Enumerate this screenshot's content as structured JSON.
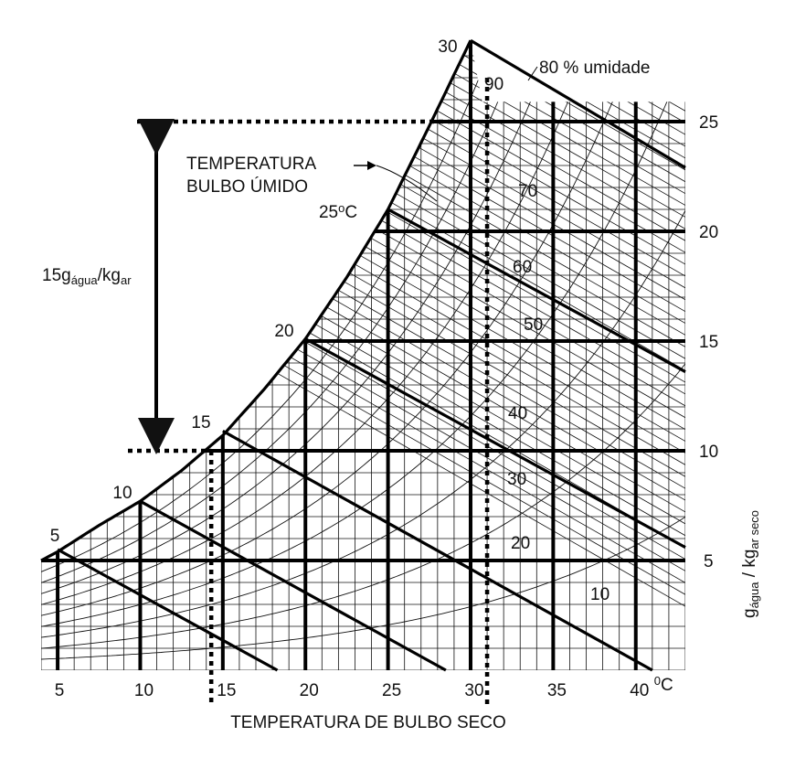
{
  "chart_data": {
    "type": "psychrometric",
    "title": "",
    "xlabel": "TEMPERATURA DE BULBO SECO",
    "ylabel": {
      "main": "g",
      "sub1": "água",
      "mid": " / kg",
      "sub2": "ar seco"
    },
    "x_ticks": [
      "5",
      "10",
      "15",
      "20",
      "25",
      "30",
      "35",
      "40"
    ],
    "x_unit": "0C",
    "x_range": [
      4,
      43
    ],
    "y_ticks": [
      "5",
      "10",
      "15",
      "20",
      "25"
    ],
    "y_range": [
      0,
      29
    ],
    "saturation_curve": [
      {
        "t": 4.0,
        "w": 5.0
      },
      {
        "t": 5.0,
        "w": 5.4
      },
      {
        "t": 7.5,
        "w": 6.6
      },
      {
        "t": 10.0,
        "w": 7.7
      },
      {
        "t": 12.5,
        "w": 9.1
      },
      {
        "t": 15.0,
        "w": 10.7
      },
      {
        "t": 17.5,
        "w": 12.8
      },
      {
        "t": 20.0,
        "w": 15.1
      },
      {
        "t": 22.5,
        "w": 17.9
      },
      {
        "t": 25.0,
        "w": 21.0
      },
      {
        "t": 27.5,
        "w": 24.8
      },
      {
        "t": 30.0,
        "w": 28.7
      }
    ],
    "wet_bulb_lines": [
      {
        "label": "5",
        "start": [
          5.0,
          5.5
        ],
        "end": [
          18.3,
          0.0
        ]
      },
      {
        "label": "10",
        "start": [
          10.0,
          7.7
        ],
        "end": [
          28.5,
          0.0
        ]
      },
      {
        "label": "15",
        "start": [
          15.0,
          10.9
        ],
        "end": [
          41.0,
          0.0
        ]
      },
      {
        "label": "20",
        "start": [
          20.0,
          15.1
        ],
        "end": [
          43.0,
          5.6
        ]
      },
      {
        "label": "25oC",
        "start": [
          25.0,
          21.0
        ],
        "end": [
          43.0,
          13.6
        ]
      },
      {
        "label": "30",
        "start": [
          30.0,
          28.7
        ],
        "end": [
          43.0,
          22.9
        ]
      }
    ],
    "relative_humidity_lines": [
      "90",
      "80 % umidade",
      "70",
      "60",
      "50",
      "40",
      "30",
      "20",
      "10"
    ],
    "annotations": {
      "wet_bulb_label": [
        "TEMPERATURA",
        "BULBO ÚMIDO"
      ],
      "delta_label": {
        "main": "15g",
        "sub1": "água",
        "mid": "/kg",
        "sub2": "ar"
      },
      "reading_lines": {
        "dry_bulb": [
          14.3,
          31.0
        ],
        "humidity": [
          10.0,
          25.0
        ]
      }
    }
  }
}
